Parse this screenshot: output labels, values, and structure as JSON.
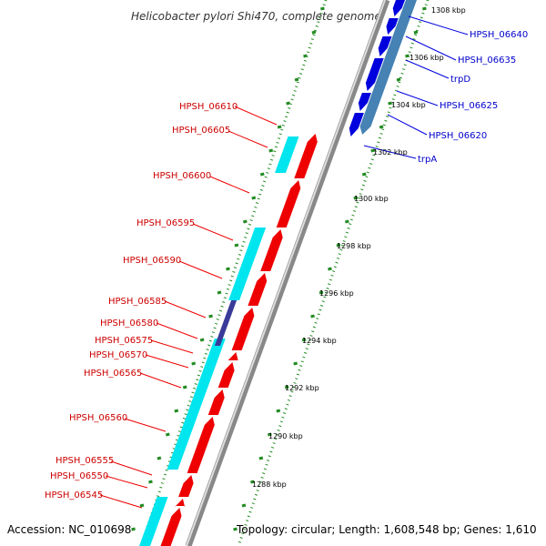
{
  "title": "Helicobacter pylori Shi470, complete genome",
  "accession": "Accession: NC_010698",
  "topology": "Topology: circular; Length: 1,608,548 bp; Genes: 1,610",
  "ticks": [
    "1308 kbp",
    "1306 kbp",
    "1304 kbp",
    "1302 kbp",
    "1300 kbp",
    "1298 kbp",
    "1296 kbp",
    "1294 kbp",
    "1292 kbp",
    "1290 kbp",
    "1288 kbp"
  ],
  "blue_genes": [
    "HPSH_06640",
    "HPSH_06635",
    "trpD",
    "HPSH_06625",
    "HPSH_06620",
    "trpA"
  ],
  "red_genes": [
    "HPSH_06610",
    "HPSH_06605",
    "HPSH_06600",
    "HPSH_06595",
    "HPSH_06590",
    "HPSH_06585",
    "HPSH_06580",
    "HPSH_06575",
    "HPSH_06570",
    "HPSH_06565",
    "HPSH_06560",
    "HPSH_06555",
    "HPSH_06550",
    "HPSH_06545"
  ],
  "colors": {
    "forward_gene": "#0000dd",
    "forward_gene_alt": "#4682b4",
    "reverse_gene": "#ee0000",
    "cyan_track": "#00e5ee",
    "navy_feature": "#3a3a99",
    "backbone": "#777777",
    "tick_mark": "#228b22",
    "label_red": "#cc0000",
    "label_blue": "#0000cc"
  }
}
